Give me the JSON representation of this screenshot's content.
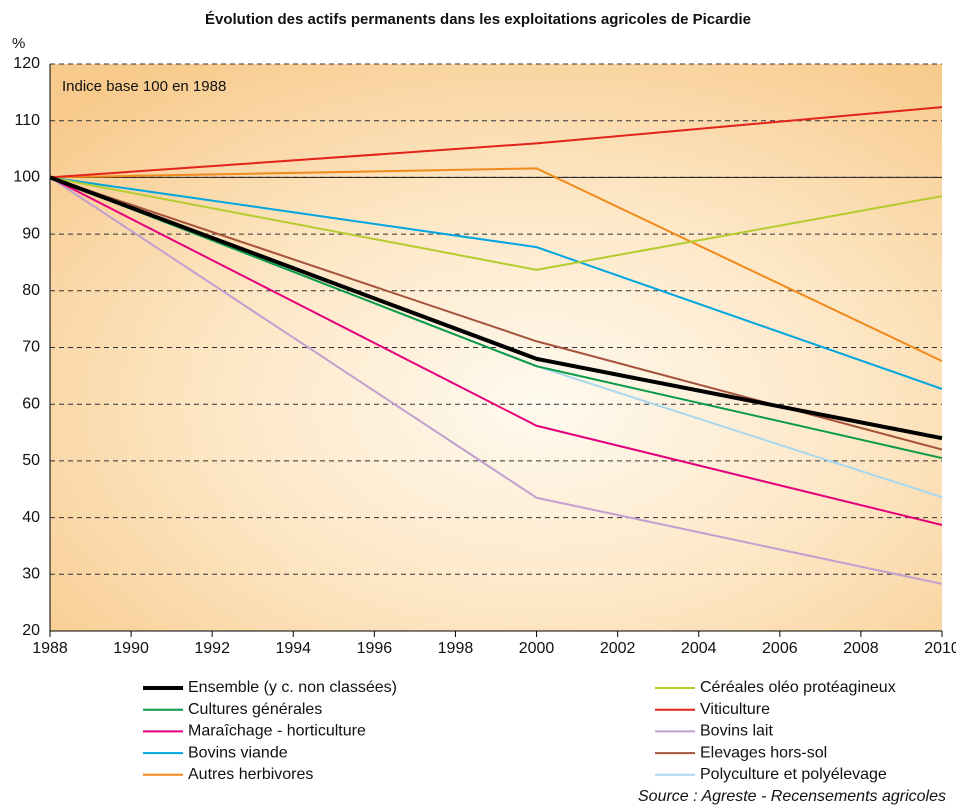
{
  "chart_data": {
    "type": "line",
    "title": "Évolution des actifs permanents dans les exploitations agricoles de Picardie",
    "y_unit": "%",
    "annotation": "Indice base 100 en 1988",
    "source": "Source : Agreste - Recensements agricoles",
    "x": [
      1988,
      2000,
      2010
    ],
    "xlim": [
      1988,
      2010
    ],
    "xticks": [
      1988,
      1990,
      1992,
      1994,
      1996,
      1998,
      2000,
      2002,
      2004,
      2006,
      2008,
      2010
    ],
    "ylim": [
      20,
      120
    ],
    "yticks": [
      20,
      30,
      40,
      50,
      60,
      70,
      80,
      90,
      100,
      110,
      120
    ],
    "grid": true,
    "reference_line": 100,
    "series": [
      {
        "name": "Ensemble (y c. non classées)",
        "color": "#000000",
        "values": [
          100,
          68,
          54
        ]
      },
      {
        "name": "Céréales oléo protéagineux",
        "color": "#b5cc2e",
        "values": [
          100,
          83.7,
          96.7
        ]
      },
      {
        "name": "Cultures générales",
        "color": "#0a9a48",
        "values": [
          100,
          66.7,
          50.5
        ]
      },
      {
        "name": "Viticulture",
        "color": "#e2231a",
        "values": [
          100,
          106,
          112.4
        ]
      },
      {
        "name": "Maraîchage - horticulture",
        "color": "#e5007d",
        "values": [
          100,
          56.2,
          38.7
        ]
      },
      {
        "name": "Bovins lait",
        "color": "#c39fd0",
        "values": [
          100,
          43.5,
          28.3
        ]
      },
      {
        "name": "Bovins viande",
        "color": "#00a6e0",
        "values": [
          100,
          87.7,
          62.7
        ]
      },
      {
        "name": "Elevages hors-sol",
        "color": "#a5533a",
        "values": [
          100,
          71.1,
          52
        ]
      },
      {
        "name": "Autres herbivores",
        "color": "#f08a1c",
        "values": [
          100,
          101.6,
          67.6
        ]
      },
      {
        "name": "Polyculture et polyélevage",
        "color": "#a8d8ee",
        "values": [
          100,
          66.7,
          43.6
        ]
      }
    ]
  }
}
